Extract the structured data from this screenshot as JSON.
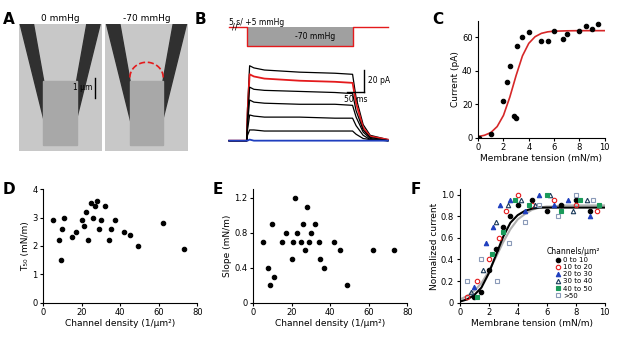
{
  "chart_data": [
    {
      "title": "A",
      "type": "image",
      "panels": [
        "0 mmHg",
        "-70 mmHg"
      ],
      "scale_bar": "1 μm"
    },
    {
      "title": "B",
      "type": "line",
      "tick_labels": false,
      "x": [
        0,
        50,
        52,
        58,
        70,
        100,
        200,
        300,
        350,
        360,
        380,
        400,
        450
      ],
      "xlim": [
        -20,
        470
      ],
      "ylim": [
        -10,
        80
      ],
      "series": [
        {
          "color": "#000000",
          "values": [
            0,
            0,
            30,
            70,
            68,
            66,
            64,
            63,
            62,
            40,
            15,
            5,
            1
          ]
        },
        {
          "color": "#e41a1c",
          "values": [
            0,
            0,
            25,
            62,
            60,
            58,
            56,
            55,
            54,
            35,
            12,
            4,
            1
          ]
        },
        {
          "color": "#000000",
          "values": [
            0,
            0,
            20,
            50,
            48,
            47,
            46,
            45,
            44,
            28,
            10,
            3,
            0
          ]
        },
        {
          "color": "#000000",
          "values": [
            0,
            0,
            15,
            38,
            36,
            35,
            34,
            34,
            33,
            22,
            8,
            2,
            0
          ]
        },
        {
          "color": "#000000",
          "values": [
            0,
            0,
            10,
            24,
            23,
            22,
            22,
            21,
            21,
            14,
            5,
            1,
            0
          ]
        },
        {
          "color": "#000000",
          "values": [
            0,
            0,
            5,
            10,
            10,
            9,
            9,
            9,
            9,
            6,
            2,
            1,
            0
          ]
        },
        {
          "color": "#1f3fbf",
          "values": [
            0,
            0,
            0,
            1,
            0,
            0,
            0,
            0,
            0,
            0,
            0,
            0,
            0
          ]
        }
      ],
      "stimulus": {
        "x": [
          0,
          50,
          50,
          350,
          350,
          450
        ],
        "values": [
          5,
          5,
          -70,
          -70,
          5,
          5
        ],
        "ylim": [
          -80,
          15
        ],
        "color": "#e41a1c",
        "label": "5 s/ +5 mmHg",
        "step_label": "-70 mmHg",
        "break_mark": "//"
      },
      "scale_bars": {
        "y": 20,
        "y_label": "20 pA",
        "x": 50,
        "x_label": "50 ms"
      }
    },
    {
      "title": "C",
      "type": "scatter",
      "x_label": "Membrane tension (mN/m)",
      "y_label": "Current (pA)",
      "x": [
        0.1,
        1,
        2,
        2.3,
        2.5,
        2.8,
        3,
        3.1,
        3.5,
        4,
        5,
        5.5,
        6,
        6.7,
        7,
        8,
        8.5,
        9,
        9.5
      ],
      "values": [
        0,
        2,
        22,
        33,
        43,
        13,
        12,
        55,
        60,
        63,
        58,
        58,
        64,
        59,
        62,
        64,
        67,
        65,
        68
      ],
      "color": "#000000",
      "marker": "circle",
      "fit": {
        "color": "#d62728",
        "x": [
          0,
          0.5,
          1,
          1.5,
          2,
          2.5,
          3,
          3.5,
          4,
          4.5,
          5,
          5.5,
          6,
          7,
          8,
          9,
          10
        ],
        "values": [
          0.6,
          1.4,
          3.0,
          6.6,
          13.3,
          24.2,
          37.2,
          48.9,
          56.4,
          60.4,
          62.4,
          63.3,
          63.7,
          63.9,
          64,
          64,
          64
        ]
      },
      "xlim": [
        0,
        10
      ],
      "xticks": [
        0,
        2,
        4,
        6,
        8,
        10
      ],
      "ylim": [
        0,
        70
      ],
      "yticks": [
        0,
        20,
        40,
        60
      ]
    },
    {
      "title": "D",
      "type": "scatter",
      "x_label": "Channel density (1/μm²)",
      "y_label": "T₅₀ (mN/m)",
      "x": [
        5,
        8,
        9,
        10,
        11,
        15,
        17,
        20,
        21,
        22,
        23,
        25,
        26,
        27,
        28,
        29,
        30,
        32,
        34,
        35,
        37,
        42,
        45,
        49,
        62,
        73
      ],
      "values": [
        2.9,
        2.2,
        1.5,
        2.6,
        3.0,
        2.3,
        2.5,
        2.9,
        2.7,
        3.2,
        2.2,
        3.5,
        3.0,
        3.4,
        3.6,
        2.6,
        2.9,
        3.4,
        2.2,
        2.6,
        2.9,
        2.5,
        2.4,
        2.0,
        2.8,
        1.9
      ],
      "color": "#000000",
      "marker": "circle",
      "xlim": [
        0,
        80
      ],
      "xticks": [
        0,
        20,
        40,
        60,
        80
      ],
      "ylim": [
        0,
        4
      ],
      "yticks": [
        0,
        1,
        2,
        3,
        4
      ]
    },
    {
      "title": "E",
      "type": "scatter",
      "x_label": "Channel density (1/μm²)",
      "y_label": "Slope (mN/m)",
      "x": [
        5,
        8,
        9,
        10,
        11,
        15,
        17,
        20,
        21,
        22,
        23,
        25,
        26,
        27,
        28,
        29,
        30,
        32,
        34,
        35,
        37,
        42,
        45,
        49,
        62,
        73
      ],
      "values": [
        0.7,
        0.4,
        0.2,
        0.9,
        0.3,
        0.7,
        0.8,
        0.5,
        0.7,
        1.2,
        0.8,
        0.7,
        0.9,
        0.6,
        1.1,
        0.7,
        0.8,
        0.9,
        0.7,
        0.5,
        0.4,
        0.7,
        0.6,
        0.2,
        0.6,
        0.6
      ],
      "color": "#000000",
      "marker": "circle",
      "xlim": [
        0,
        80
      ],
      "xticks": [
        0,
        20,
        40,
        60,
        80
      ],
      "ylim": [
        0,
        1.3
      ],
      "yticks": [
        0,
        0.4,
        0.8,
        1.2
      ]
    },
    {
      "title": "F",
      "type": "scatter",
      "x_label": "Membrane tension (mN/m)",
      "y_label": "Normalized current",
      "legend": "lower right",
      "legend_title": "Channels/μm²",
      "series": [
        {
          "name": "0 to 10",
          "color": "#000000",
          "marker": "circle",
          "x": [
            1,
            1.5,
            2,
            2.5,
            3,
            3.5,
            4,
            5,
            6,
            7,
            8,
            9
          ],
          "values": [
            0.05,
            0.1,
            0.3,
            0.5,
            0.7,
            0.8,
            0.9,
            0.95,
            0.85,
            0.9,
            0.95,
            0.85
          ]
        },
        {
          "name": "10 to 20",
          "color": "#e41a1c",
          "marker": "open_circle",
          "x": [
            0.5,
            1.2,
            2,
            2.7,
            3.2,
            4,
            5,
            6.5,
            8,
            9.5
          ],
          "values": [
            0.05,
            0.2,
            0.4,
            0.6,
            0.85,
            1.0,
            0.9,
            0.95,
            0.9,
            0.85
          ]
        },
        {
          "name": "20 to 30",
          "color": "#1f3fbf",
          "marker": "triangle",
          "x": [
            1,
            1.8,
            2.3,
            2.8,
            3.5,
            4.5,
            5.5,
            6.5,
            7.5,
            9
          ],
          "values": [
            0.15,
            0.55,
            0.7,
            0.9,
            0.95,
            0.85,
            1.0,
            0.9,
            0.95,
            0.8
          ]
        },
        {
          "name": "30 to 40",
          "color": "#1a3a5a",
          "marker": "open_triangle",
          "x": [
            0.8,
            1.6,
            2.5,
            3.3,
            4.2,
            5.2,
            6.2,
            7.8,
            8.8
          ],
          "values": [
            0.1,
            0.3,
            0.75,
            0.9,
            0.95,
            0.9,
            1.0,
            0.85,
            0.95
          ]
        },
        {
          "name": "40 to 50",
          "color": "#1a9a5a",
          "marker": "square",
          "x": [
            1.2,
            2.2,
            3,
            3.8,
            4.8,
            6,
            7,
            8.3,
            9.6
          ],
          "values": [
            0.05,
            0.45,
            0.65,
            0.95,
            0.9,
            1.0,
            0.85,
            0.95,
            0.9
          ]
        },
        {
          "name": ">50",
          "color": "#8a9ab8",
          "marker": "open_square",
          "x": [
            0.5,
            1.5,
            2.6,
            3.4,
            4.5,
            5.5,
            6.8,
            8,
            9.2
          ],
          "values": [
            0.2,
            0.4,
            0.2,
            0.55,
            0.75,
            0.9,
            0.8,
            1.0,
            0.95
          ]
        }
      ],
      "fit_x": [
        0,
        0.5,
        1,
        1.5,
        2,
        2.5,
        3,
        3.5,
        4,
        4.5,
        5,
        5.5,
        6,
        6.5,
        7,
        7.5,
        8,
        8.5,
        9,
        9.5,
        10
      ],
      "fits": [
        {
          "color": "#b0b0b0",
          "values": [
            0.03,
            0.06,
            0.11,
            0.18,
            0.29,
            0.42,
            0.56,
            0.68,
            0.77,
            0.82,
            0.86,
            0.88,
            0.89,
            0.89,
            0.9,
            0.9,
            0.9,
            0.9,
            0.9,
            0.9,
            0.9
          ]
        },
        {
          "color": "#000000",
          "values": [
            0.01,
            0.03,
            0.07,
            0.14,
            0.27,
            0.44,
            0.61,
            0.74,
            0.81,
            0.85,
            0.87,
            0.88,
            0.88,
            0.88,
            0.88,
            0.88,
            0.88,
            0.88,
            0.88,
            0.88,
            0.88
          ]
        }
      ],
      "xlim": [
        0,
        10
      ],
      "xticks": [
        0,
        2,
        4,
        6,
        8,
        10
      ],
      "ylim": [
        0,
        1.05
      ],
      "yticks": [
        0,
        0.2,
        0.4,
        0.6,
        0.8,
        1.0
      ]
    }
  ]
}
